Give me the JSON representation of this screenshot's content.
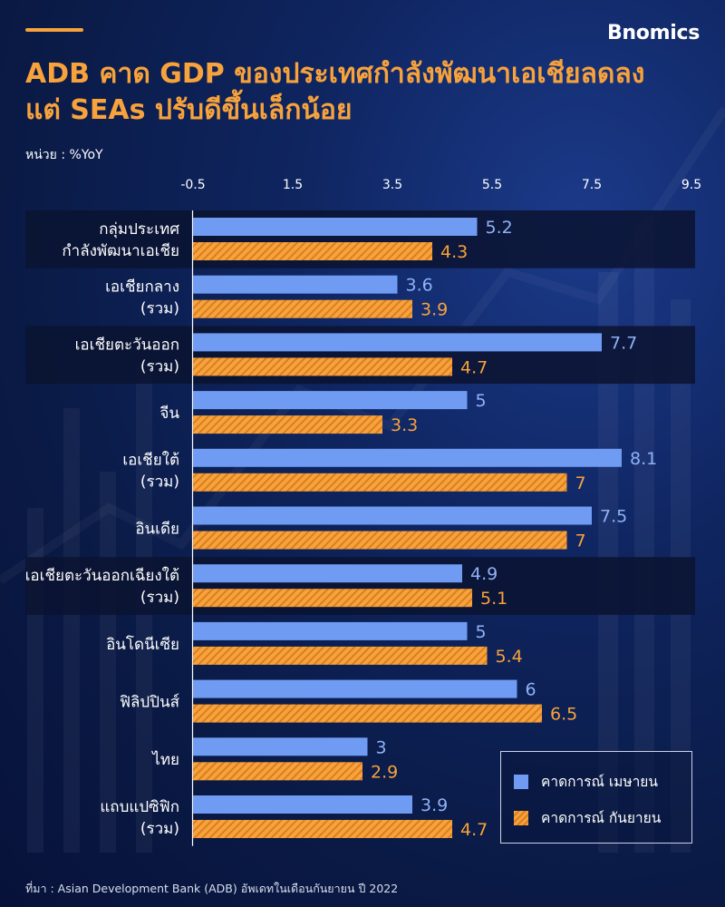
{
  "header": {
    "logo": "Bnomics",
    "title_line1": "ADB คาด GDP ของประเทศกำลังพัฒนาเอเชียลดลง",
    "title_line2": "แต่ SEAs ปรับดีขึ้นเล็กน้อย",
    "unit": "หน่วย : %YoY"
  },
  "footer": {
    "source": "ที่มา : Asian Development Bank (ADB) อัพเดทในเดือนกันยายน ปี 2022"
  },
  "colors": {
    "accent": "#f7a23b",
    "april_bar": "#6f9bf2",
    "september_bar": "#f7a23b",
    "april_label": "#8fb2f7",
    "band": "#0a1330"
  },
  "chart_data": {
    "type": "bar",
    "orientation": "horizontal",
    "xlim": [
      -0.5,
      9.5
    ],
    "ticks": [
      "-0.5",
      "1.5",
      "3.5",
      "5.5",
      "7.5",
      "9.5"
    ],
    "tick_values": [
      -0.5,
      1.5,
      3.5,
      5.5,
      7.5,
      9.5
    ],
    "legend_position": "bottom-right",
    "categories": [
      [
        "กลุ่มประเทศ",
        "กำลังพัฒนาเอเชีย"
      ],
      [
        "เอเชียกลาง",
        "(รวม)"
      ],
      [
        "เอเชียตะวันออก",
        "(รวม)"
      ],
      [
        "จีน"
      ],
      [
        "เอเชียใต้",
        "(รวม)"
      ],
      [
        "อินเดีย"
      ],
      [
        "เอเชียตะวันออกเฉียงใต้",
        "(รวม)"
      ],
      [
        "อินโดนีเซีย"
      ],
      [
        "ฟิลิปปินส์"
      ],
      [
        "ไทย"
      ],
      [
        "แถบแปซิฟิก",
        "(รวม)"
      ]
    ],
    "highlighted": [
      true,
      false,
      true,
      false,
      false,
      false,
      true,
      false,
      false,
      false,
      false
    ],
    "series": [
      {
        "name": "คาดการณ์ เมษายน",
        "values": [
          5.2,
          3.6,
          7.7,
          5,
          8.1,
          7.5,
          4.9,
          5,
          6,
          3,
          3.9
        ],
        "labels": [
          "5.2",
          "3.6",
          "7.7",
          "5",
          "8.1",
          "7.5",
          "4.9",
          "5",
          "6",
          "3",
          "3.9"
        ]
      },
      {
        "name": "คาดการณ์ กันยายน",
        "values": [
          4.3,
          3.9,
          4.7,
          3.3,
          7,
          7,
          5.1,
          5.4,
          6.5,
          2.9,
          4.7
        ],
        "labels": [
          "4.3",
          "3.9",
          "4.7",
          "3.3",
          "7",
          "7",
          "5.1",
          "5.4",
          "6.5",
          "2.9",
          "4.7"
        ]
      }
    ]
  }
}
